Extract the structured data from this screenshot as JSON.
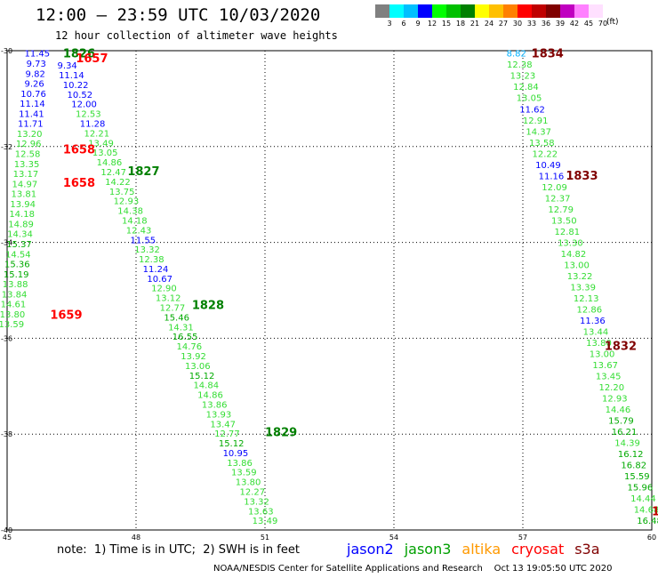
{
  "header": {
    "title": "12:00 – 23:59 UTC 10/03/2020",
    "subtitle": "12 hour collection of altimeter wave heights"
  },
  "legend": {
    "unit": "(ft)",
    "colors": [
      "#808080",
      "#00ffff",
      "#00c0ff",
      "#0000ff",
      "#00ff00",
      "#00c000",
      "#008000",
      "#ffff00",
      "#ffc000",
      "#ff8000",
      "#ff0000",
      "#c00000",
      "#800000",
      "#c000c0",
      "#ff80ff",
      "#ffe0ff"
    ],
    "labels": [
      "3",
      "6",
      "9",
      "12",
      "15",
      "18",
      "21",
      "24",
      "27",
      "30",
      "33",
      "36",
      "39",
      "42",
      "45",
      "70"
    ]
  },
  "map": {
    "lon_labels": [
      "45",
      "48",
      "51",
      "54",
      "57",
      "60"
    ],
    "lat_labels": [
      "-30",
      "-32",
      "-34",
      "-36",
      "-38",
      "-40"
    ],
    "lon_range": [
      45,
      60
    ],
    "lat_range": [
      -30,
      -40
    ],
    "grid": "dotted"
  },
  "tracks": [
    {
      "name": "track-left",
      "lon_start": 45.7,
      "lat_start": -30.05,
      "lon_end": 45.1,
      "lat_end": -35.7,
      "values": [
        {
          "v": "11.45",
          "c": "#0000ff"
        },
        {
          "v": "9.73",
          "c": "#0000ff"
        },
        {
          "v": "9.82",
          "c": "#0000ff"
        },
        {
          "v": "9.26",
          "c": "#0000ff"
        },
        {
          "v": "10.76",
          "c": "#0000ff"
        },
        {
          "v": "11.14",
          "c": "#0000ff"
        },
        {
          "v": "11.41",
          "c": "#0000ff"
        },
        {
          "v": "11.71",
          "c": "#0000ff"
        },
        {
          "v": "13.20",
          "c": "#33dd33"
        },
        {
          "v": "12.96",
          "c": "#33dd33"
        },
        {
          "v": "12.58",
          "c": "#33dd33"
        },
        {
          "v": "13.35",
          "c": "#33dd33"
        },
        {
          "v": "13.17",
          "c": "#33dd33"
        },
        {
          "v": "14.97",
          "c": "#33dd33"
        },
        {
          "v": "13.81",
          "c": "#33dd33"
        },
        {
          "v": "13.94",
          "c": "#33dd33"
        },
        {
          "v": "14.18",
          "c": "#33dd33"
        },
        {
          "v": "14.89",
          "c": "#33dd33"
        },
        {
          "v": "14.34",
          "c": "#33dd33"
        },
        {
          "v": "15.37",
          "c": "#00aa00"
        },
        {
          "v": "14.54",
          "c": "#33dd33"
        },
        {
          "v": "15.36",
          "c": "#00aa00"
        },
        {
          "v": "15.19",
          "c": "#00aa00"
        },
        {
          "v": "13.88",
          "c": "#33dd33"
        },
        {
          "v": "13.84",
          "c": "#33dd33"
        },
        {
          "v": "14.61",
          "c": "#33dd33"
        },
        {
          "v": "13.80",
          "c": "#33dd33"
        },
        {
          "v": "13.59",
          "c": "#33dd33"
        }
      ]
    },
    {
      "name": "track-center",
      "lon_start": 46.4,
      "lat_start": -30.3,
      "lon_end": 51.0,
      "lat_end": -39.8,
      "values": [
        {
          "v": "9.34",
          "c": "#0000ff"
        },
        {
          "v": "11.14",
          "c": "#0000ff"
        },
        {
          "v": "10.22",
          "c": "#0000ff"
        },
        {
          "v": "10.52",
          "c": "#0000ff"
        },
        {
          "v": "12.00",
          "c": "#0000ff"
        },
        {
          "v": "12.53",
          "c": "#33dd33"
        },
        {
          "v": "11.28",
          "c": "#0000ff"
        },
        {
          "v": "12.21",
          "c": "#33dd33"
        },
        {
          "v": "13.49",
          "c": "#33dd33"
        },
        {
          "v": "13.05",
          "c": "#33dd33"
        },
        {
          "v": "14.86",
          "c": "#33dd33"
        },
        {
          "v": "12.47",
          "c": "#33dd33"
        },
        {
          "v": "14.22",
          "c": "#33dd33"
        },
        {
          "v": "13.75",
          "c": "#33dd33"
        },
        {
          "v": "12.93",
          "c": "#33dd33"
        },
        {
          "v": "14.38",
          "c": "#33dd33"
        },
        {
          "v": "14.18",
          "c": "#33dd33"
        },
        {
          "v": "12.43",
          "c": "#33dd33"
        },
        {
          "v": "11.55",
          "c": "#0000ff"
        },
        {
          "v": "13.32",
          "c": "#33dd33"
        },
        {
          "v": "12.38",
          "c": "#33dd33"
        },
        {
          "v": "11.24",
          "c": "#0000ff"
        },
        {
          "v": "10.67",
          "c": "#0000ff"
        },
        {
          "v": "12.90",
          "c": "#33dd33"
        },
        {
          "v": "13.12",
          "c": "#33dd33"
        },
        {
          "v": "12.77",
          "c": "#33dd33"
        },
        {
          "v": "15.46",
          "c": "#00aa00"
        },
        {
          "v": "14.31",
          "c": "#33dd33"
        },
        {
          "v": "16.55",
          "c": "#00aa00"
        },
        {
          "v": "14.76",
          "c": "#33dd33"
        },
        {
          "v": "13.92",
          "c": "#33dd33"
        },
        {
          "v": "13.06",
          "c": "#33dd33"
        },
        {
          "v": "15.12",
          "c": "#00aa00"
        },
        {
          "v": "14.84",
          "c": "#33dd33"
        },
        {
          "v": "14.86",
          "c": "#33dd33"
        },
        {
          "v": "13.86",
          "c": "#33dd33"
        },
        {
          "v": "13.93",
          "c": "#33dd33"
        },
        {
          "v": "13.47",
          "c": "#33dd33"
        },
        {
          "v": "12.77",
          "c": "#33dd33"
        },
        {
          "v": "15.12",
          "c": "#00aa00"
        },
        {
          "v": "10.95",
          "c": "#0000ff"
        },
        {
          "v": "13.86",
          "c": "#33dd33"
        },
        {
          "v": "13.59",
          "c": "#33dd33"
        },
        {
          "v": "13.80",
          "c": "#33dd33"
        },
        {
          "v": "12.27",
          "c": "#33dd33"
        },
        {
          "v": "13.32",
          "c": "#33dd33"
        },
        {
          "v": "13.63",
          "c": "#33dd33"
        },
        {
          "v": "13.49",
          "c": "#33dd33"
        }
      ]
    },
    {
      "name": "track-right",
      "lon_start": 56.85,
      "lat_start": -30.05,
      "lon_end": 59.95,
      "lat_end": -39.8,
      "values": [
        {
          "v": "8.82",
          "c": "#00b0ff"
        },
        {
          "v": "12.38",
          "c": "#33dd33"
        },
        {
          "v": "13.23",
          "c": "#33dd33"
        },
        {
          "v": "12.84",
          "c": "#33dd33"
        },
        {
          "v": "13.05",
          "c": "#33dd33"
        },
        {
          "v": "11.62",
          "c": "#0000ff"
        },
        {
          "v": "12.91",
          "c": "#33dd33"
        },
        {
          "v": "14.37",
          "c": "#33dd33"
        },
        {
          "v": "13.58",
          "c": "#33dd33"
        },
        {
          "v": "12.22",
          "c": "#33dd33"
        },
        {
          "v": "10.49",
          "c": "#0000ff"
        },
        {
          "v": "11.16",
          "c": "#0000ff"
        },
        {
          "v": "12.09",
          "c": "#33dd33"
        },
        {
          "v": "12.37",
          "c": "#33dd33"
        },
        {
          "v": "12.79",
          "c": "#33dd33"
        },
        {
          "v": "13.50",
          "c": "#33dd33"
        },
        {
          "v": "12.81",
          "c": "#33dd33"
        },
        {
          "v": "13.30",
          "c": "#33dd33"
        },
        {
          "v": "14.82",
          "c": "#33dd33"
        },
        {
          "v": "13.00",
          "c": "#33dd33"
        },
        {
          "v": "13.22",
          "c": "#33dd33"
        },
        {
          "v": "13.39",
          "c": "#33dd33"
        },
        {
          "v": "12.13",
          "c": "#33dd33"
        },
        {
          "v": "12.86",
          "c": "#33dd33"
        },
        {
          "v": "11.36",
          "c": "#0000ff"
        },
        {
          "v": "13.44",
          "c": "#33dd33"
        },
        {
          "v": "13.80",
          "c": "#33dd33"
        },
        {
          "v": "13.00",
          "c": "#33dd33"
        },
        {
          "v": "13.67",
          "c": "#33dd33"
        },
        {
          "v": "13.45",
          "c": "#33dd33"
        },
        {
          "v": "12.20",
          "c": "#33dd33"
        },
        {
          "v": "12.93",
          "c": "#33dd33"
        },
        {
          "v": "14.46",
          "c": "#33dd33"
        },
        {
          "v": "15.79",
          "c": "#00aa00"
        },
        {
          "v": "16.21",
          "c": "#00aa00"
        },
        {
          "v": "14.39",
          "c": "#33dd33"
        },
        {
          "v": "16.12",
          "c": "#00aa00"
        },
        {
          "v": "16.82",
          "c": "#00aa00"
        },
        {
          "v": "15.59",
          "c": "#00aa00"
        },
        {
          "v": "15.96",
          "c": "#00aa00"
        },
        {
          "v": "14.44",
          "c": "#33dd33"
        },
        {
          "v": "14.68",
          "c": "#33dd33"
        },
        {
          "v": "16.48",
          "c": "#00aa00"
        }
      ]
    }
  ],
  "time_labels": [
    {
      "t": "1826",
      "c": "#008000",
      "lon": 46.3,
      "lat": -30.05
    },
    {
      "t": "1657",
      "c": "#ff0000",
      "lon": 46.6,
      "lat": -30.15
    },
    {
      "t": "1658",
      "c": "#ff0000",
      "lon": 46.3,
      "lat": -32.05
    },
    {
      "t": "1658",
      "c": "#ff0000",
      "lon": 46.3,
      "lat": -32.75
    },
    {
      "t": "1827",
      "c": "#008000",
      "lon": 47.8,
      "lat": -32.5
    },
    {
      "t": "1659",
      "c": "#ff0000",
      "lon": 46.0,
      "lat": -35.5
    },
    {
      "t": "1828",
      "c": "#008000",
      "lon": 49.3,
      "lat": -35.3
    },
    {
      "t": "1829",
      "c": "#008000",
      "lon": 51.0,
      "lat": -37.95
    },
    {
      "t": "1834",
      "c": "#800000",
      "lon": 57.2,
      "lat": -30.05
    },
    {
      "t": "1833",
      "c": "#800000",
      "lon": 58.0,
      "lat": -32.6
    },
    {
      "t": "1832",
      "c": "#800000",
      "lon": 58.9,
      "lat": -36.15
    },
    {
      "t": "1",
      "c": "#c00000",
      "lon": 60.0,
      "lat": -39.6
    }
  ],
  "note": "note:  1) Time is in UTC;  2) SWH is in feet",
  "satellites": [
    {
      "name": "jason2",
      "color": "#0000ff"
    },
    {
      "name": "jason3",
      "color": "#00a000"
    },
    {
      "name": "altika",
      "color": "#ff9900"
    },
    {
      "name": "cryosat",
      "color": "#ff0000"
    },
    {
      "name": "s3a",
      "color": "#800000"
    }
  ],
  "credit": "NOAA/NESDIS Center for Satellite Applications and Research    Oct 13 19:05:50 UTC 2020"
}
